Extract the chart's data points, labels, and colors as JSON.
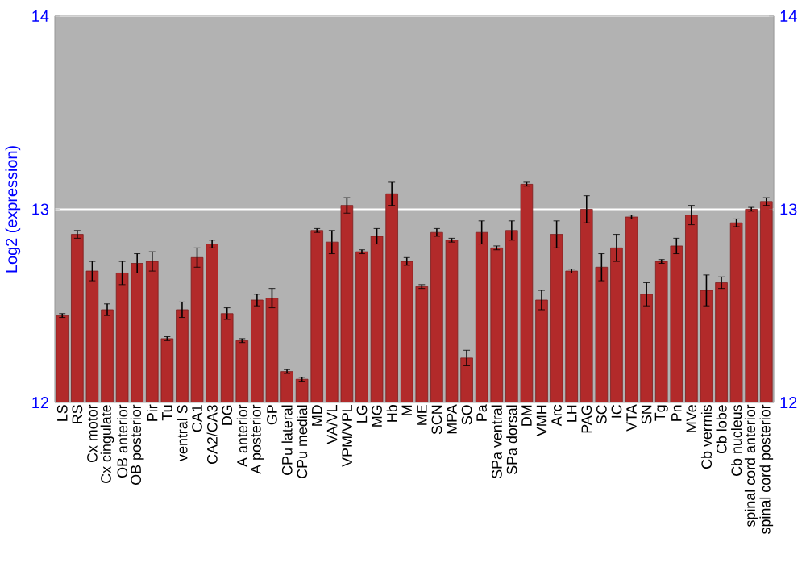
{
  "chart_data": {
    "type": "bar",
    "ylabel": "Log2 (expression)",
    "categories": [
      "LS",
      "RS",
      "Cx motor",
      "Cx cingulate",
      "OB anterior",
      "OB posterior",
      "Pir",
      "Tu",
      "ventral S",
      "CA1",
      "CA2/CA3",
      "DG",
      "A anterior",
      "A posterior",
      "GP",
      "CPu lateral",
      "CPu medial",
      "MD",
      "VA/VL",
      "VPM/VPL",
      "LG",
      "MG",
      "Hb",
      "M",
      "ME",
      "SCN",
      "MPA",
      "SO",
      "Pa",
      "SPa ventral",
      "SPa dorsal",
      "DM",
      "VMH",
      "Arc",
      "LH",
      "PAG",
      "SC",
      "IC",
      "VTA",
      "SN",
      "Tg",
      "Pn",
      "MVe",
      "Cb vermis",
      "Cb lobe",
      "Cb nucleus",
      "spinal cord anterior",
      "spinal cord posterior"
    ],
    "values": [
      12.45,
      12.87,
      12.68,
      12.48,
      12.67,
      12.72,
      12.73,
      12.33,
      12.48,
      12.75,
      12.82,
      12.46,
      12.32,
      12.53,
      12.54,
      12.16,
      12.12,
      12.89,
      12.83,
      13.02,
      12.78,
      12.86,
      13.08,
      12.73,
      12.6,
      12.88,
      12.84,
      12.23,
      12.88,
      12.8,
      12.89,
      13.13,
      12.53,
      12.87,
      12.68,
      13.0,
      12.7,
      12.8,
      12.96,
      12.56,
      12.73,
      12.81,
      12.97,
      12.58,
      12.62,
      12.93,
      13.0,
      13.04
    ],
    "errors": [
      0.01,
      0.02,
      0.05,
      0.03,
      0.06,
      0.05,
      0.05,
      0.01,
      0.04,
      0.05,
      0.02,
      0.03,
      0.01,
      0.03,
      0.05,
      0.01,
      0.01,
      0.01,
      0.06,
      0.04,
      0.01,
      0.04,
      0.06,
      0.02,
      0.01,
      0.02,
      0.01,
      0.04,
      0.06,
      0.01,
      0.05,
      0.01,
      0.05,
      0.07,
      0.01,
      0.07,
      0.07,
      0.07,
      0.01,
      0.06,
      0.01,
      0.04,
      0.05,
      0.08,
      0.03,
      0.02,
      0.01,
      0.02
    ],
    "color": "#b22a2a",
    "ylim": [
      12,
      14
    ],
    "yticks": [
      12,
      13,
      14
    ],
    "y2lim": [
      12,
      14
    ],
    "y2ticks": [
      12,
      13,
      14
    ],
    "grid": "y"
  }
}
